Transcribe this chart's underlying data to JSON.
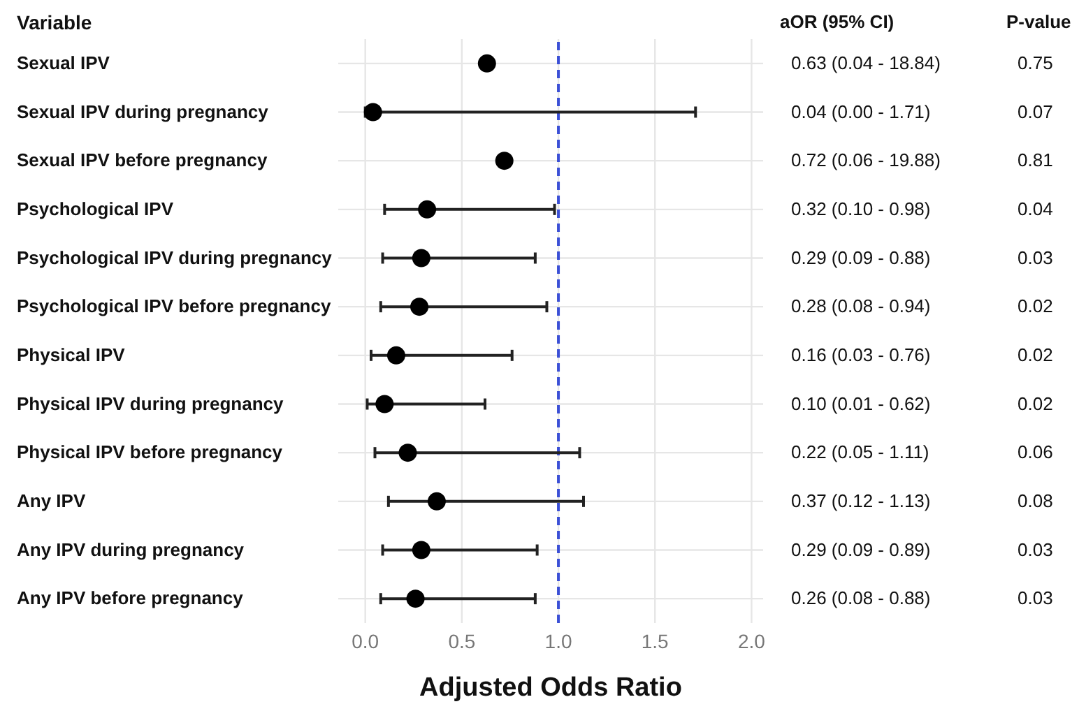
{
  "chart_data": {
    "type": "scatter",
    "orientation": "horizontal",
    "ylabel": "Variable",
    "xlabel": "Adjusted Odds Ratio",
    "categories": [
      "Sexual IPV",
      "Sexual IPV during pregnancy",
      "Sexual IPV before pregnancy",
      "Psychological IPV",
      "Psychological IPV during pregnancy",
      "Psychological IPV before pregnancy",
      "Physical IPV",
      "Physical IPV during pregnancy",
      "Physical IPV before pregnancy",
      "Any IPV",
      "Any IPV during pregnancy",
      "Any IPV before pregnancy"
    ],
    "color": "#000000",
    "values": [
      0.63,
      0.04,
      0.72,
      0.32,
      0.29,
      0.28,
      0.16,
      0.1,
      0.22,
      0.37,
      0.29,
      0.26
    ],
    "errors": [
      null,
      [
        0.0,
        1.71
      ],
      null,
      [
        0.1,
        0.98
      ],
      [
        0.09,
        0.88
      ],
      [
        0.08,
        0.94
      ],
      [
        0.03,
        0.76
      ],
      [
        0.01,
        0.62
      ],
      [
        0.05,
        1.11
      ],
      [
        0.12,
        1.13
      ],
      [
        0.09,
        0.89
      ],
      [
        0.08,
        0.88
      ]
    ],
    "xlim": [
      -0.14,
      2.06
    ],
    "xticks": [
      {
        "value": 0,
        "label": "0.0"
      },
      {
        "value": 0.5,
        "label": "0.5"
      },
      {
        "value": 1,
        "label": "1.0"
      },
      {
        "value": 1.5,
        "label": "1.5"
      },
      {
        "value": 2,
        "label": "2.0"
      }
    ],
    "ref_lines": [
      {
        "axis": "x",
        "value": 1,
        "color": "#3a4fd6",
        "line_style": "dashed"
      }
    ],
    "grid": true,
    "marker": "circle",
    "annotations": [
      "aOR (95% CI)",
      "P-value",
      "0.63 (0.04 - 18.84)",
      "0.75",
      "0.04 (0.00 - 1.71)",
      "0.07",
      "0.72 (0.06 - 19.88)",
      "0.81",
      "0.32 (0.10 - 0.98)",
      "0.04",
      "0.29 (0.09 - 0.88)",
      "0.03",
      "0.28 (0.08 - 0.94)",
      "0.02",
      "0.16 (0.03 - 0.76)",
      "0.02",
      "0.10 (0.01 - 0.62)",
      "0.02",
      "0.22 (0.05 - 1.11)",
      "0.06",
      "0.37 (0.12 - 1.13)",
      "0.08",
      "0.29 (0.09 - 0.89)",
      "0.03",
      "0.26 (0.08 - 0.88)",
      "0.03"
    ]
  }
}
